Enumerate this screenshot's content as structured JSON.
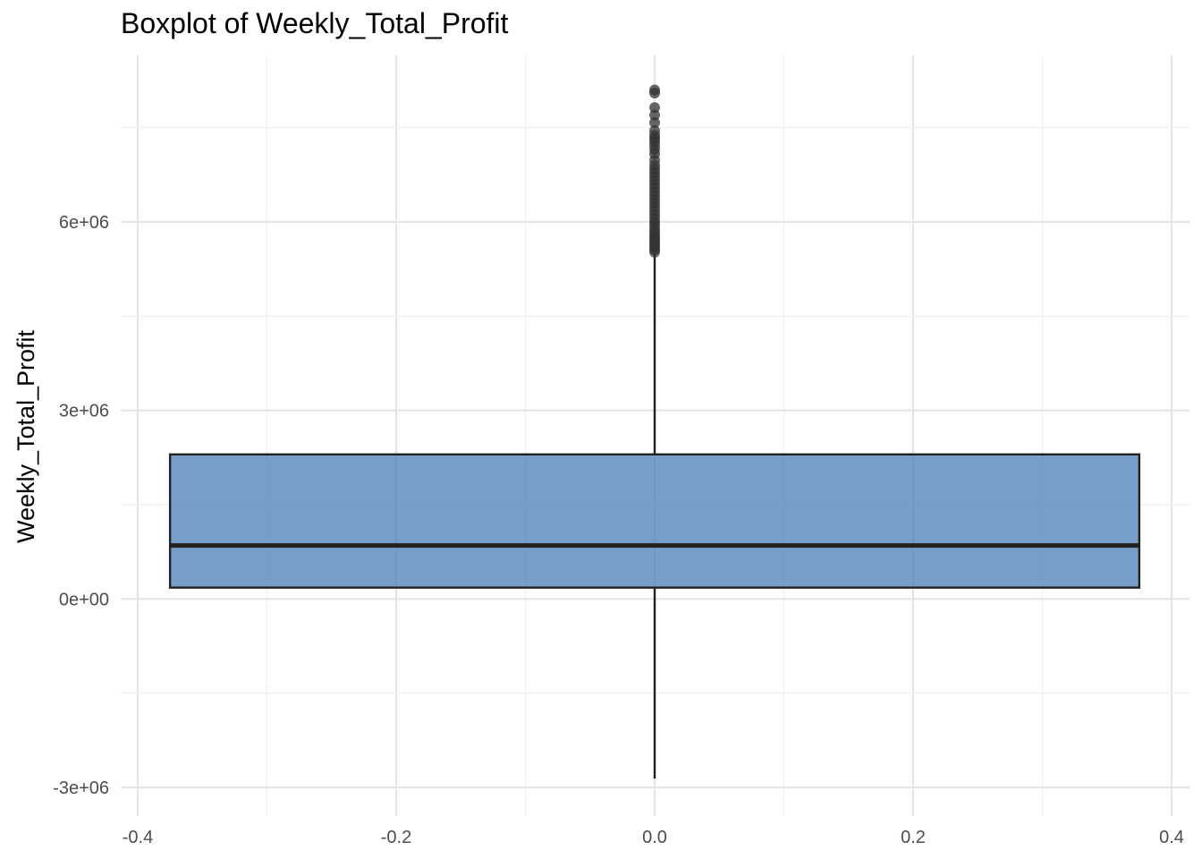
{
  "chart_data": {
    "type": "box",
    "title": "Boxplot of Weekly_Total_Profit",
    "xlabel": "",
    "ylabel": "Weekly_Total_Profit",
    "xlim": [
      -0.4,
      0.4
    ],
    "ylim": [
      -3000000,
      8000000
    ],
    "x_ticks": [
      -0.4,
      -0.2,
      0.0,
      0.2,
      0.4
    ],
    "x_tick_labels": [
      "-0.4",
      "-0.2",
      "0.0",
      "0.2",
      "0.4"
    ],
    "y_ticks": [
      -3000000,
      0,
      3000000,
      6000000
    ],
    "y_tick_labels": [
      "-3e+06",
      "0e+00",
      "3e+06",
      "6e+06"
    ],
    "grid": true,
    "box": {
      "x": 0.0,
      "width": 0.75,
      "q1": 180000,
      "median": 850000,
      "q3": 2300000,
      "whisker_low": -2860000,
      "whisker_high": 5500000,
      "color": "#4a7db5"
    },
    "outliers": [
      5520000,
      5560000,
      5600000,
      5640000,
      5680000,
      5720000,
      5760000,
      5800000,
      5850000,
      5900000,
      5960000,
      6000000,
      6060000,
      6120000,
      6180000,
      6240000,
      6300000,
      6360000,
      6420000,
      6480000,
      6540000,
      6600000,
      6660000,
      6720000,
      6780000,
      6840000,
      6900000,
      6980000,
      7080000,
      7150000,
      7220000,
      7280000,
      7330000,
      7380000,
      7450000,
      7580000,
      7700000,
      7820000,
      8050000,
      8100000
    ]
  }
}
